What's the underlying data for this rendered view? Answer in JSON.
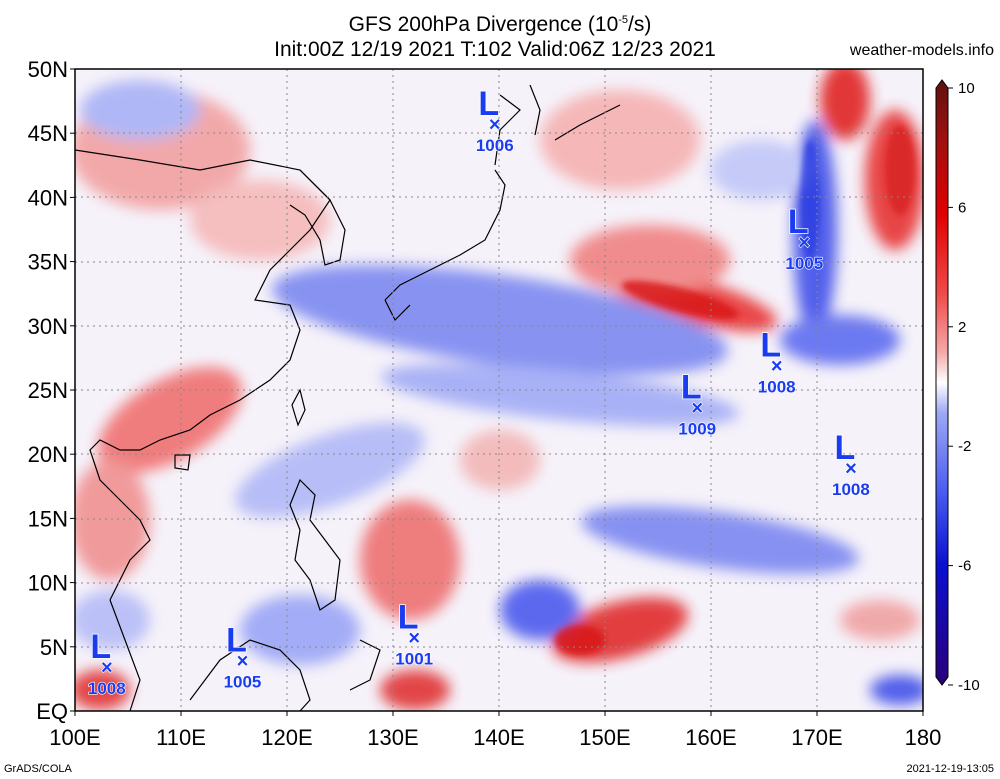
{
  "header": {
    "title": "GFS 200hPa Divergence (10",
    "title_sup": "-5",
    "title_end": "/s)",
    "subtitle": "Init:00Z 12/19 2021 T:102 Valid:06Z 12/23 2021",
    "site": "weather-models.info"
  },
  "footer": {
    "left": "GrADS/COLA",
    "right": "2021-12-19-13:05"
  },
  "axes": {
    "lat_labels": [
      "EQ",
      "5N",
      "10N",
      "15N",
      "20N",
      "25N",
      "30N",
      "35N",
      "40N",
      "45N",
      "50N"
    ],
    "lon_labels": [
      "100E",
      "110E",
      "120E",
      "130E",
      "140E",
      "150E",
      "160E",
      "170E",
      "180"
    ]
  },
  "colorbar": {
    "labels": [
      "10",
      "6",
      "2",
      "-2",
      "-6",
      "-10"
    ],
    "colors": [
      "#2a007a",
      "#0a10d0",
      "#4a5cf0",
      "#9ea8f5",
      "#ffffff",
      "#f5a8a8",
      "#f04848",
      "#e00000",
      "#a01010",
      "#601010"
    ]
  },
  "lows": [
    {
      "letter": "L",
      "pressure": "1006",
      "lon": 139.6,
      "lat": 45.8
    },
    {
      "letter": "L",
      "pressure": "1005",
      "lon": 168.8,
      "lat": 36.6
    },
    {
      "letter": "L",
      "pressure": "1008",
      "lon": 166.2,
      "lat": 27.0
    },
    {
      "letter": "L",
      "pressure": "1009",
      "lon": 158.7,
      "lat": 23.7
    },
    {
      "letter": "L",
      "pressure": "1008",
      "lon": 173.2,
      "lat": 19.0
    },
    {
      "letter": "L",
      "pressure": "1001",
      "lon": 132.0,
      "lat": 5.8
    },
    {
      "letter": "L",
      "pressure": "1005",
      "lon": 115.8,
      "lat": 4.0
    },
    {
      "letter": "L",
      "pressure": "1008",
      "lon": 103.0,
      "lat": 3.5
    }
  ]
}
